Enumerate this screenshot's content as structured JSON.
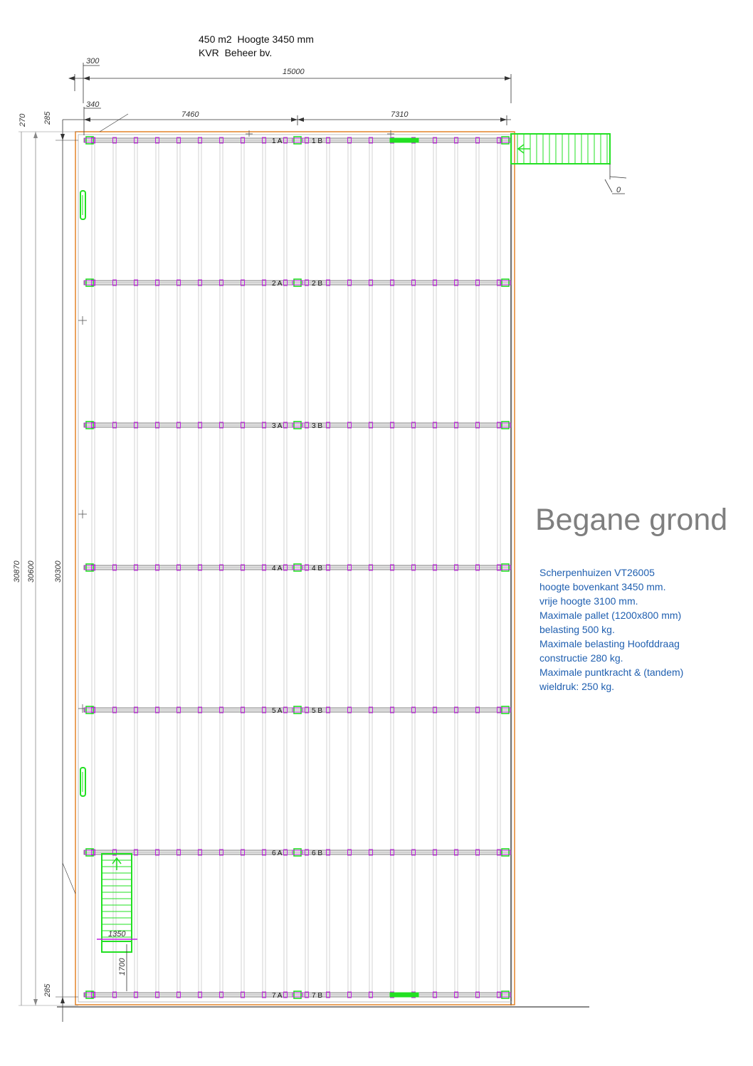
{
  "header": {
    "line1": "450 m2  Hoogte 3450 mm",
    "line2": "KVR  Beheer bv."
  },
  "title": "Begane grond",
  "specs": [
    "Scherpenhuizen VT26005",
    "hoogte bovenkant 3450 mm.",
    "vrije hoogte 3100 mm.",
    "Maximale pallet (1200x800 mm)",
    "belasting 500 kg.",
    "Maximale belasting Hoofddraag",
    "constructie 280 kg.",
    "Maximale puntkracht & (tandem)",
    "wieldruk:  250 kg."
  ],
  "dimensions": {
    "top_offset": "300",
    "total_width": "15000",
    "left_offset": "340",
    "span_a": "7460",
    "span_b": "7310",
    "stair_offset": "0",
    "stair_width": "1350",
    "stair_clearance": "1700",
    "vert_top_a": "270",
    "vert_top_b": "285",
    "vert_bottom": "285",
    "vert_total_a": "30870",
    "vert_total_b": "30600",
    "vert_total_c": "30300"
  },
  "beams": [
    {
      "a": "1 A",
      "b": "1 B"
    },
    {
      "a": "2 A",
      "b": "2 B"
    },
    {
      "a": "3 A",
      "b": "3 B"
    },
    {
      "a": "4 A",
      "b": "4 B"
    },
    {
      "a": "5 A",
      "b": "5 B"
    },
    {
      "a": "6 A",
      "b": "6 B"
    },
    {
      "a": "7 A",
      "b": "7 B"
    }
  ],
  "colors": {
    "frame": "#e07b1a",
    "green": "#22e022",
    "magenta": "#c020e0",
    "beam": "#808080",
    "text_blue": "#1f5fb0",
    "title_gray": "#7f7f7f"
  }
}
